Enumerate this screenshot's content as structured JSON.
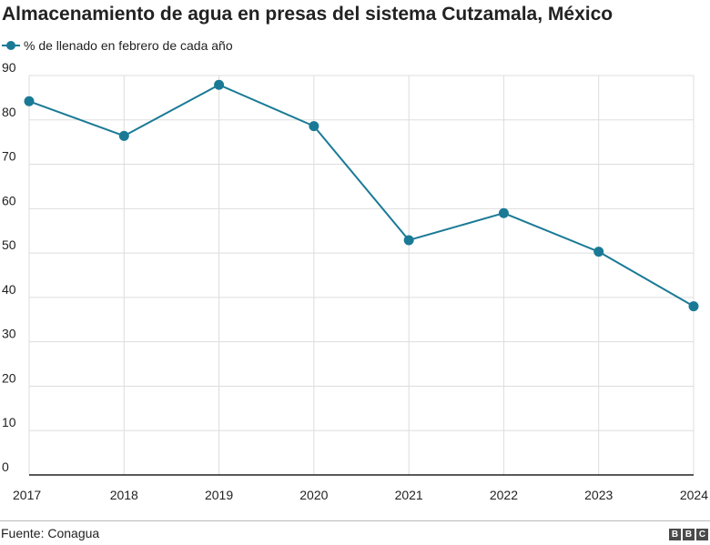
{
  "chart_data": {
    "type": "line",
    "title": "Almacenamiento de agua en presas del sistema Cutzamala, México",
    "x": [
      "2017",
      "2018",
      "2019",
      "2020",
      "2021",
      "2022",
      "2023",
      "2024"
    ],
    "series": [
      {
        "name": "% de llenado en febrero de cada año",
        "values": [
          84.2,
          76.4,
          87.9,
          78.6,
          52.9,
          59.0,
          50.3,
          38.0
        ]
      }
    ],
    "yticks": [
      "0",
      "10",
      "20",
      "30",
      "40",
      "50",
      "60",
      "70",
      "80",
      "90"
    ],
    "ylim": [
      0,
      90
    ],
    "grid": true,
    "legend": "top-left"
  },
  "source": "Fuente: Conagua",
  "logo": [
    "B",
    "B",
    "C"
  ],
  "colors": {
    "series": "#1a7a96",
    "grid": "#dddddd",
    "axis": "#222222",
    "text": "#222222"
  }
}
